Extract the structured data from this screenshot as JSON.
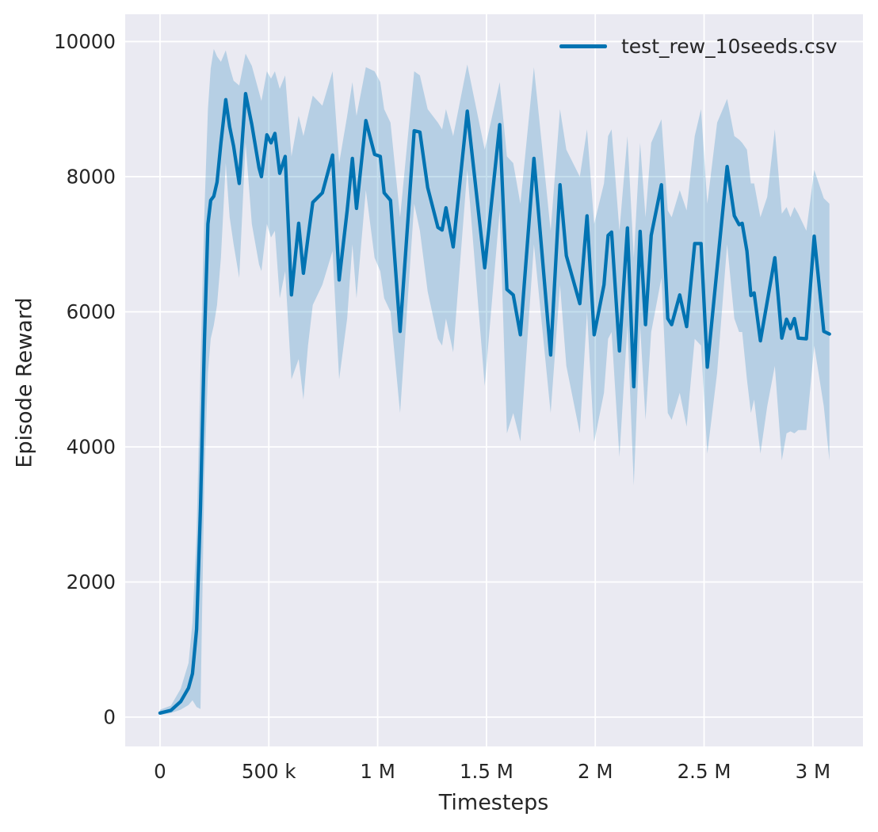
{
  "chart_data": {
    "type": "line",
    "title": "",
    "xlabel": "Timesteps",
    "ylabel": "Episode Reward",
    "grid": true,
    "legend_position": "upper right",
    "legend": [
      {
        "label": "test_rew_10seeds.csv",
        "color": "#0173b2"
      }
    ],
    "colors": {
      "line": "#0173b2",
      "band_fill": "rgba(1,115,178,0.22)",
      "axes_background": "#eaeaf2",
      "grid_line": "#ffffff",
      "text": "#262626",
      "figure_background": "#ffffff"
    },
    "xlim": [
      -160000,
      3230000
    ],
    "ylim": [
      -434,
      10404
    ],
    "xticks": {
      "values": [
        0,
        500000,
        1000000,
        1500000,
        2000000,
        2500000,
        3000000
      ],
      "labels": [
        "0",
        "500 k",
        "1 M",
        "1.5 M",
        "2 M",
        "2.5 M",
        "3 M"
      ]
    },
    "yticks": {
      "values": [
        0,
        2000,
        4000,
        6000,
        8000,
        10000
      ],
      "labels": [
        "0",
        "2000",
        "4000",
        "6000",
        "8000",
        "10000"
      ]
    },
    "series": [
      {
        "name": "test_rew_10seeds.csv",
        "x": [
          0,
          50000,
          95000,
          131000,
          149000,
          168000,
          186000,
          204000,
          220000,
          233000,
          247000,
          262000,
          280000,
          302000,
          320000,
          338000,
          364000,
          393000,
          422000,
          455000,
          466000,
          491000,
          510000,
          528000,
          550000,
          575000,
          604000,
          637000,
          659000,
          680000,
          702000,
          746000,
          793000,
          823000,
          860000,
          884000,
          903000,
          946000,
          986000,
          1012000,
          1030000,
          1059000,
          1103000,
          1168000,
          1194000,
          1230000,
          1277000,
          1296000,
          1314000,
          1347000,
          1412000,
          1492000,
          1561000,
          1594000,
          1623000,
          1656000,
          1718000,
          1795000,
          1838000,
          1867000,
          1929000,
          1962000,
          1995000,
          2040000,
          2059000,
          2075000,
          2111000,
          2148000,
          2177000,
          2206000,
          2231000,
          2257000,
          2304000,
          2333000,
          2351000,
          2388000,
          2420000,
          2457000,
          2486000,
          2515000,
          2560000,
          2606000,
          2639000,
          2661000,
          2675000,
          2697000,
          2715000,
          2730000,
          2759000,
          2790000,
          2825000,
          2857000,
          2879000,
          2897000,
          2915000,
          2933000,
          2970000,
          3006000,
          3050000,
          3076000
        ],
        "mean": [
          60,
          100,
          230,
          430,
          645,
          1300,
          3100,
          5570,
          7300,
          7650,
          7710,
          7920,
          8500,
          9140,
          8740,
          8450,
          7900,
          9230,
          8770,
          8130,
          8000,
          8620,
          8500,
          8640,
          8050,
          8300,
          6250,
          7310,
          6570,
          7100,
          7620,
          7760,
          8320,
          6470,
          7500,
          8270,
          7530,
          8830,
          8330,
          8300,
          7760,
          7650,
          5710,
          8680,
          8660,
          7840,
          7250,
          7210,
          7540,
          6960,
          8970,
          6650,
          8770,
          6330,
          6250,
          5660,
          8270,
          5360,
          7880,
          6830,
          6120,
          7420,
          5660,
          6400,
          7130,
          7180,
          5420,
          7240,
          4890,
          7190,
          5810,
          7130,
          7880,
          5900,
          5810,
          6250,
          5780,
          7010,
          7010,
          5180,
          6650,
          8150,
          7420,
          7290,
          7310,
          6900,
          6240,
          6280,
          5570,
          6150,
          6800,
          5610,
          5890,
          5750,
          5900,
          5610,
          5600,
          7120,
          5710,
          5670
        ],
        "band_low": [
          30,
          60,
          110,
          180,
          250,
          150,
          120,
          3600,
          5100,
          5600,
          5800,
          6100,
          6800,
          8200,
          7400,
          7000,
          6500,
          8500,
          7300,
          6700,
          6600,
          7300,
          7100,
          7200,
          6200,
          6600,
          5000,
          5300,
          4700,
          5500,
          6100,
          6400,
          6900,
          5000,
          5900,
          7000,
          6200,
          7800,
          6800,
          6600,
          6200,
          6000,
          4500,
          7600,
          7200,
          6300,
          5600,
          5500,
          5900,
          5400,
          8100,
          4900,
          7500,
          4200,
          4500,
          4080,
          7000,
          4500,
          6400,
          5200,
          4200,
          6000,
          4070,
          4800,
          5600,
          5700,
          3850,
          5800,
          3430,
          5800,
          4400,
          5700,
          6500,
          4500,
          4400,
          4800,
          4300,
          5600,
          5500,
          3900,
          5100,
          7000,
          5900,
          5700,
          5700,
          5000,
          4500,
          4700,
          3900,
          4600,
          5200,
          3800,
          4200,
          4230,
          4200,
          4250,
          4250,
          5500,
          4600,
          3800
        ],
        "band_high": [
          110,
          170,
          420,
          800,
          1400,
          2700,
          5200,
          7500,
          9000,
          9600,
          9890,
          9780,
          9700,
          9870,
          9620,
          9420,
          9350,
          9820,
          9640,
          9250,
          9120,
          9560,
          9450,
          9560,
          9300,
          9500,
          8300,
          8900,
          8600,
          8900,
          9200,
          9050,
          9560,
          8200,
          8900,
          9400,
          8900,
          9620,
          9560,
          9400,
          9000,
          8800,
          7400,
          9560,
          9500,
          9000,
          8800,
          8700,
          9000,
          8600,
          9660,
          8400,
          9400,
          8300,
          8200,
          7600,
          9620,
          7200,
          9000,
          8400,
          8000,
          8700,
          7300,
          7900,
          8600,
          8700,
          7200,
          8600,
          6800,
          8500,
          7400,
          8500,
          8850,
          7500,
          7400,
          7800,
          7500,
          8600,
          9000,
          7600,
          8800,
          9150,
          8600,
          8550,
          8500,
          8400,
          7900,
          7900,
          7400,
          7700,
          8700,
          7450,
          7550,
          7400,
          7550,
          7450,
          7200,
          8100,
          7680,
          7600
        ]
      }
    ]
  }
}
